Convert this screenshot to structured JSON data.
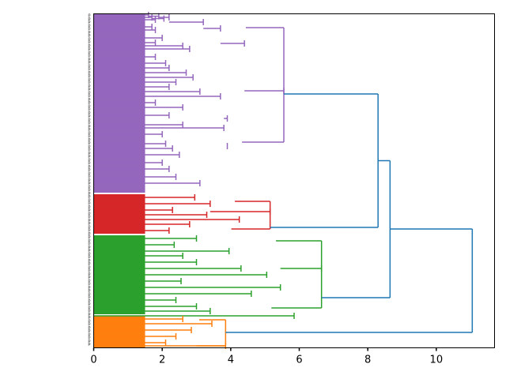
{
  "chart_data": {
    "type": "dendrogram",
    "orientation": "left",
    "title": "",
    "xlabel": "",
    "ylabel": "",
    "xlim": [
      0,
      11.7
    ],
    "x_ticks": [
      0,
      2,
      4,
      6,
      8,
      10
    ],
    "x_tick_labels": [
      "0",
      "2",
      "4",
      "6",
      "8",
      "10"
    ],
    "grid": false,
    "leaf_label_prefix": "p",
    "colors": {
      "purple": "#9467bd",
      "red": "#d62728",
      "green": "#2ca02c",
      "orange": "#ff7f0e",
      "above_threshold": "#1f77b4",
      "axis": "#000000"
    },
    "clusters": [
      {
        "name": "purple",
        "color": "#9467bd",
        "leaf_count": 53,
        "merge_height": 5.55
      },
      {
        "name": "red",
        "color": "#d62728",
        "leaf_count": 12,
        "merge_height": 5.15
      },
      {
        "name": "green",
        "color": "#2ca02c",
        "leaf_count": 24,
        "merge_height": 6.65
      },
      {
        "name": "orange",
        "color": "#ff7f0e",
        "leaf_count": 10,
        "merge_height": 3.85
      }
    ],
    "top_level_merges": [
      {
        "children": [
          "purple",
          "red"
        ],
        "height": 8.3
      },
      {
        "children": [
          "purple+red",
          "green"
        ],
        "height": 8.65
      },
      {
        "children": [
          "purple+red+green",
          "orange"
        ],
        "height": 11.05
      }
    ],
    "segments": [
      {
        "color": "purple",
        "rows": [
          [
            0.0,
            19.0,
            1.6
          ],
          [
            0.0,
            22.0,
            1.7
          ],
          [
            0.0,
            25.0,
            1.8
          ],
          [
            1.6,
            20.5,
            1.9
          ],
          [
            1.7,
            23.5,
            2.05
          ],
          [
            1.9,
            22.0,
            2.2
          ],
          [
            2.2,
            28.0,
            3.2
          ],
          [
            0.0,
            34.0,
            1.7
          ],
          [
            0.0,
            38.0,
            1.8
          ],
          [
            3.2,
            36.0,
            3.7
          ],
          [
            0.0,
            48.0,
            2.0
          ],
          [
            0.0,
            54.0,
            1.8
          ],
          [
            0.0,
            58.0,
            2.6
          ],
          [
            0.0,
            62.0,
            2.8
          ],
          [
            3.7,
            55.0,
            4.4
          ],
          [
            0.0,
            72.0,
            1.8
          ],
          [
            0.0,
            80.0,
            2.1
          ],
          [
            0.0,
            86.0,
            2.2
          ],
          [
            0.0,
            92.0,
            2.7
          ],
          [
            0.0,
            98.0,
            2.9
          ],
          [
            0.0,
            104.0,
            2.4
          ],
          [
            0.0,
            110.0,
            2.2
          ],
          [
            0.0,
            116.0,
            3.1
          ],
          [
            0.0,
            122.0,
            3.7
          ],
          [
            0.0,
            130.0,
            1.8
          ],
          [
            0.0,
            136.0,
            2.6
          ],
          [
            0.0,
            146.0,
            2.2
          ],
          [
            0.0,
            158.0,
            2.6
          ],
          [
            0.0,
            162.0,
            3.8
          ],
          [
            0.0,
            170.0,
            2.0
          ],
          [
            0.0,
            182.0,
            2.1
          ],
          [
            0.0,
            188.0,
            2.3
          ],
          [
            0.0,
            196.0,
            2.5
          ],
          [
            0.0,
            206.0,
            2.0
          ],
          [
            0.0,
            214.0,
            2.2
          ],
          [
            0.0,
            224.0,
            2.4
          ],
          [
            0.0,
            232.0,
            3.1
          ],
          [
            3.8,
            150.0,
            3.9
          ],
          [
            3.9,
            185.0,
            3.9
          ],
          [
            4.4,
            115.0,
            5.55
          ]
        ]
      },
      {
        "color": "red",
        "rows": [
          [
            0.0,
            250.0,
            2.95
          ],
          [
            0.0,
            258.0,
            3.4
          ],
          [
            0.0,
            266.0,
            2.3
          ],
          [
            0.0,
            272.0,
            3.3
          ],
          [
            0.0,
            278.0,
            4.25
          ],
          [
            0.0,
            284.0,
            2.8
          ],
          [
            0.0,
            292.0,
            2.2
          ],
          [
            3.4,
            268.0,
            5.15
          ]
        ]
      },
      {
        "color": "green",
        "rows": [
          [
            0.0,
            302.0,
            3.0
          ],
          [
            0.0,
            310.0,
            2.35
          ],
          [
            0.0,
            318.0,
            3.95
          ],
          [
            0.0,
            324.0,
            2.6
          ],
          [
            0.0,
            332.0,
            3.0
          ],
          [
            0.0,
            340.0,
            4.3
          ],
          [
            0.0,
            348.0,
            5.05
          ],
          [
            0.0,
            356.0,
            2.55
          ],
          [
            0.0,
            364.0,
            5.45
          ],
          [
            0.0,
            372.0,
            4.6
          ],
          [
            0.0,
            380.0,
            2.4
          ],
          [
            0.0,
            388.0,
            3.0
          ],
          [
            0.0,
            394.0,
            3.4
          ],
          [
            0.0,
            400.0,
            5.85
          ],
          [
            5.45,
            340.0,
            6.65
          ]
        ]
      },
      {
        "color": "orange",
        "rows": [
          [
            0.0,
            404.0,
            2.6
          ],
          [
            0.0,
            410.0,
            3.45
          ],
          [
            0.0,
            418.0,
            2.85
          ],
          [
            0.0,
            426.0,
            2.4
          ],
          [
            0.0,
            434.0,
            2.1
          ],
          [
            0.0,
            438.0,
            3.85
          ]
        ]
      }
    ]
  }
}
